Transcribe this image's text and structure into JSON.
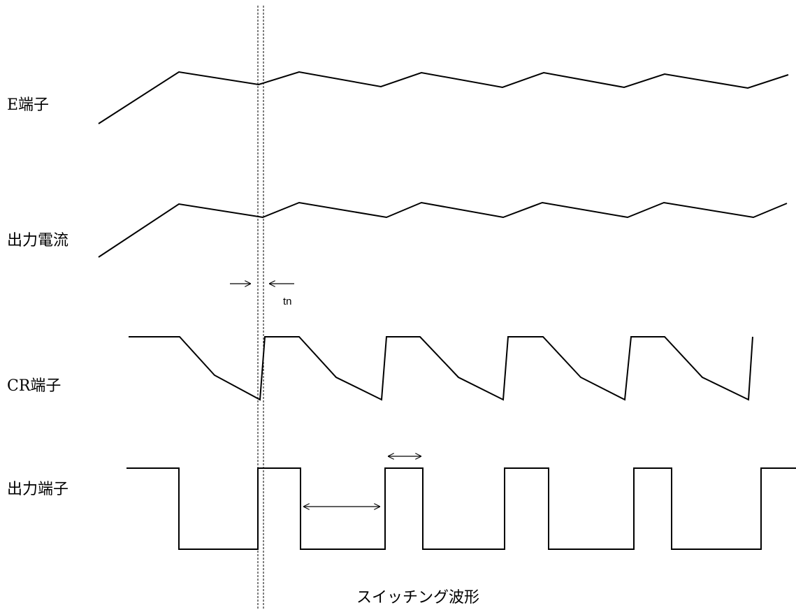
{
  "diagram": {
    "title": "スイッチング波形",
    "signals": [
      {
        "id": "e-terminal",
        "label": "E端子"
      },
      {
        "id": "output-current",
        "label": "出力電流"
      },
      {
        "id": "cr-terminal",
        "label": "CR端子"
      },
      {
        "id": "output-terminal",
        "label": "出力端子"
      }
    ],
    "annotations": {
      "tn_label": "tn"
    },
    "colors": {
      "stroke": "#000000",
      "background": "#ffffff"
    }
  }
}
